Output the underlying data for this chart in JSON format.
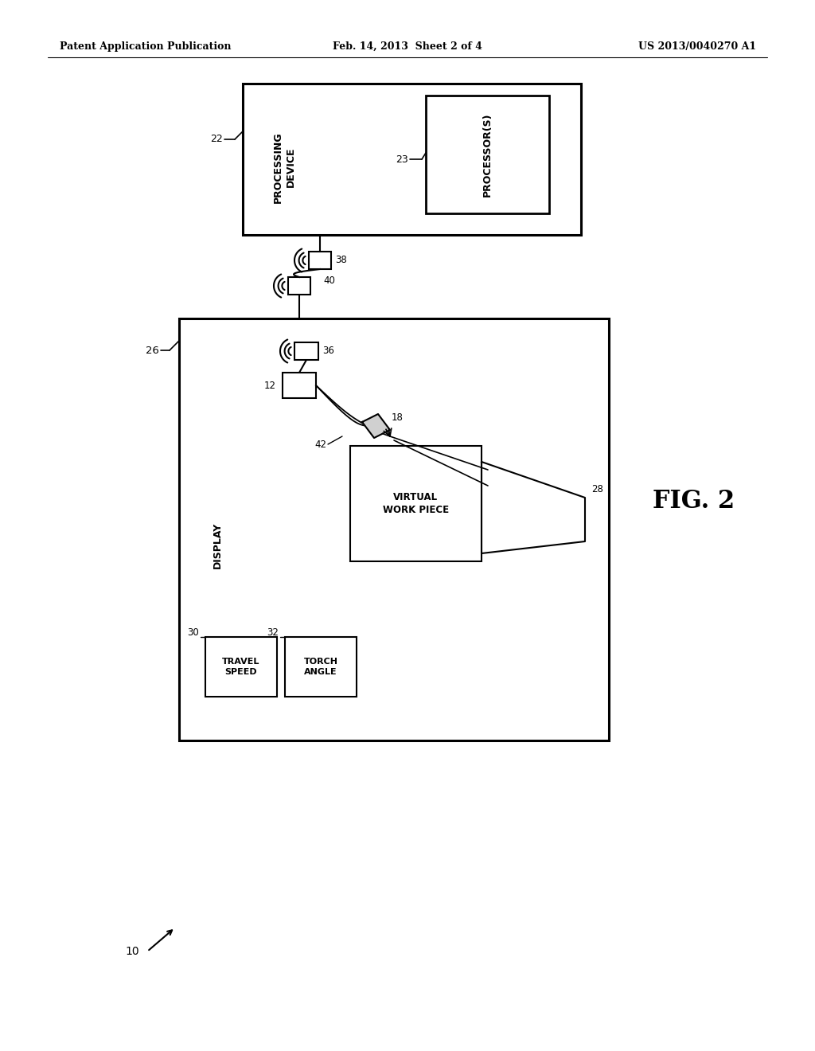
{
  "bg_color": "#ffffff",
  "header_left": "Patent Application Publication",
  "header_center": "Feb. 14, 2013  Sheet 2 of 4",
  "header_right": "US 2013/0040270 A1",
  "fig_label": "FIG. 2"
}
